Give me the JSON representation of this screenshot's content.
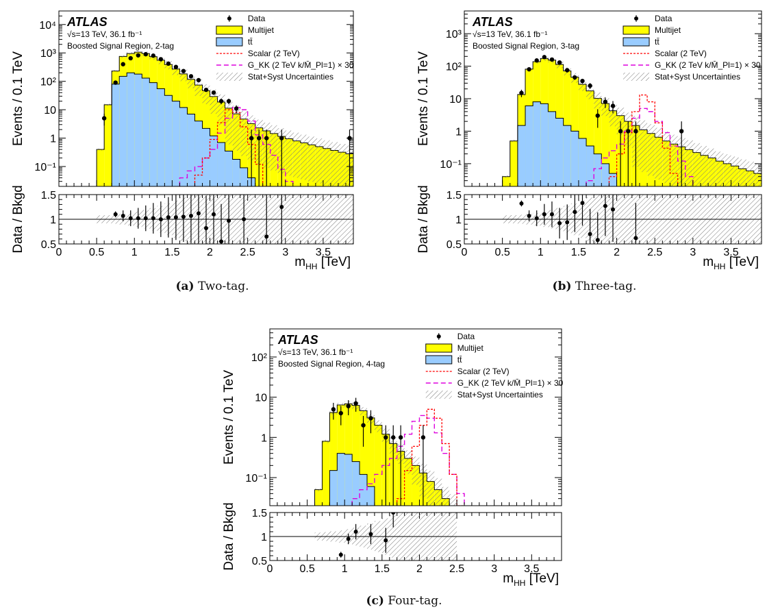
{
  "figure": {
    "captions": [
      {
        "label": "(a)",
        "text": "Two-tag."
      },
      {
        "label": "(b)",
        "text": "Three-tag."
      },
      {
        "label": "(c)",
        "text": "Four-tag."
      }
    ]
  },
  "common": {
    "atlas": "ATLAS",
    "lumi": "√s=13 TeV, 36.1 fb⁻¹",
    "ylabel_top": "Events / 0.1 TeV",
    "ylabel_ratio": "Data / Bkgd",
    "xlabel": "m",
    "xlabel_sub": "HH",
    "xlabel_unit": " [TeV]",
    "legend": [
      {
        "key": "data",
        "label": "Data"
      },
      {
        "key": "multijet",
        "label": "Multijet"
      },
      {
        "key": "ttbar",
        "label": "tt̄"
      },
      {
        "key": "scalar",
        "label": "Scalar (2 TeV)"
      },
      {
        "key": "gkk",
        "label": "G_KK (2 TeV k/M̄_Pl=1) × 30"
      },
      {
        "key": "unc",
        "label": "Stat+Syst Uncertainties"
      }
    ],
    "colors": {
      "multijet": "#ffff00",
      "ttbar": "#99ccff",
      "scalar": "#ff0000",
      "gkk": "#dd00dd",
      "data": "#000000"
    }
  },
  "chart_data": [
    {
      "type": "bar",
      "region": "Boosted Signal Region, 2-tag",
      "xlim": [
        0,
        3.9
      ],
      "ylim": [
        0.02,
        30000
      ],
      "ylog": true,
      "ratio_ylim": [
        0.5,
        1.5
      ],
      "xticks": [
        0,
        0.5,
        1,
        1.5,
        2,
        2.5,
        3,
        3.5
      ],
      "yticks": [
        {
          "v": 0.1,
          "t": "10⁻¹"
        },
        {
          "v": 1,
          "t": "1"
        },
        {
          "v": 10,
          "t": "10"
        },
        {
          "v": 100,
          "t": "10²"
        },
        {
          "v": 1000,
          "t": "10³"
        },
        {
          "v": 10000,
          "t": "10⁴"
        }
      ],
      "bins_start": 0.5,
      "bin_width": 0.1,
      "series": [
        {
          "name": "Multijet",
          "values": [
            0.4,
            15,
            150,
            600,
            750,
            880,
            820,
            650,
            500,
            360,
            250,
            170,
            110,
            70,
            45,
            28,
            18,
            11,
            7,
            4.6,
            3.2,
            2.3,
            1.8,
            1.45,
            1.15,
            0.95,
            0.8,
            0.68,
            0.58,
            0.5,
            0.43,
            0.37,
            0.32,
            0.28,
            0.24
          ]
        },
        {
          "name": "tt̄",
          "values": [
            0,
            0,
            80,
            150,
            200,
            180,
            130,
            90,
            55,
            32,
            20,
            12,
            7,
            4,
            2.2,
            1.2,
            0.7,
            0.35,
            0.18,
            0.09,
            0.04,
            0,
            0,
            0,
            0,
            0,
            0,
            0,
            0,
            0,
            0,
            0,
            0,
            0,
            0
          ]
        },
        {
          "name": "Scalar (2 TeV)",
          "values": [
            0,
            0,
            0,
            0,
            0,
            0,
            0,
            0,
            0,
            0,
            0,
            0,
            0,
            0.05,
            0.2,
            0.9,
            3.5,
            10,
            8,
            2.5,
            0.6,
            0.12,
            0.02,
            0,
            0,
            0,
            0,
            0,
            0,
            0,
            0,
            0,
            0,
            0,
            0
          ]
        },
        {
          "name": "G_KK",
          "values": [
            0,
            0,
            0,
            0,
            0,
            0,
            0,
            0,
            0,
            0,
            0,
            0.04,
            0.07,
            0.1,
            0.2,
            0.4,
            1.5,
            5,
            12,
            10,
            4,
            1.3,
            0.6,
            0.25,
            0.08,
            0.03,
            0,
            0,
            0,
            0,
            0,
            0,
            0,
            0,
            0
          ]
        }
      ],
      "data": {
        "x": [
          0.6,
          0.75,
          0.85,
          0.95,
          1.05,
          1.15,
          1.25,
          1.35,
          1.45,
          1.55,
          1.65,
          1.75,
          1.85,
          1.95,
          2.05,
          2.15,
          2.25,
          2.35,
          2.55,
          2.65,
          2.75,
          2.95,
          3.85
        ],
        "y": [
          5,
          90,
          400,
          650,
          820,
          900,
          800,
          600,
          420,
          320,
          230,
          150,
          110,
          50,
          40,
          20,
          20,
          11,
          1,
          1,
          1,
          1,
          1
        ]
      },
      "ratio": {
        "x": [
          0.75,
          0.85,
          0.95,
          1.05,
          1.15,
          1.25,
          1.35,
          1.45,
          1.55,
          1.65,
          1.75,
          1.85,
          1.95,
          2.05,
          2.15,
          2.25,
          2.45,
          2.75,
          2.95
        ],
        "y": [
          1.1,
          1.07,
          1.02,
          1.02,
          1.02,
          1.02,
          1.0,
          1.04,
          1.04,
          1.05,
          1.07,
          1.12,
          0.82,
          1.1,
          0.55,
          0.97,
          1.0,
          0.65,
          1.25
        ]
      }
    },
    {
      "type": "bar",
      "region": "Boosted Signal Region, 3-tag",
      "xlim": [
        0,
        3.9
      ],
      "ylim": [
        0.02,
        5000
      ],
      "ylog": true,
      "ratio_ylim": [
        0.5,
        1.5
      ],
      "xticks": [
        0,
        0.5,
        1,
        1.5,
        2,
        2.5,
        3,
        3.5
      ],
      "yticks": [
        {
          "v": 0.1,
          "t": "10⁻¹"
        },
        {
          "v": 1,
          "t": "1"
        },
        {
          "v": 10,
          "t": "10"
        },
        {
          "v": 100,
          "t": "10²"
        },
        {
          "v": 1000,
          "t": "10³"
        }
      ],
      "bins_start": 0.5,
      "bin_width": 0.1,
      "series": [
        {
          "name": "Multijet",
          "values": [
            0.04,
            0.5,
            12,
            75,
            130,
            165,
            150,
            110,
            70,
            45,
            27,
            17,
            10,
            7,
            4.2,
            3,
            2,
            1.5,
            1.1,
            0.85,
            0.65,
            0.5,
            0.4,
            0.33,
            0.27,
            0.22,
            0.18,
            0.15,
            0.12,
            0.1,
            0.085,
            0.07,
            0.06,
            0.05,
            0.042
          ]
        },
        {
          "name": "tt̄",
          "values": [
            0,
            0,
            1.5,
            6,
            8,
            7,
            4,
            2.5,
            1.5,
            1,
            0.6,
            0.35,
            0.2,
            0.1,
            0.05,
            0,
            0,
            0,
            0,
            0,
            0,
            0,
            0,
            0,
            0,
            0,
            0,
            0,
            0,
            0,
            0,
            0,
            0,
            0,
            0
          ]
        },
        {
          "name": "Scalar (2 TeV)",
          "values": [
            0,
            0,
            0,
            0,
            0,
            0,
            0,
            0,
            0,
            0,
            0,
            0,
            0,
            0,
            0.04,
            0.2,
            0.9,
            4,
            13,
            8,
            1.8,
            0.3,
            0.05,
            0,
            0,
            0,
            0,
            0,
            0,
            0,
            0,
            0,
            0,
            0,
            0
          ]
        },
        {
          "name": "G_KK",
          "values": [
            0,
            0,
            0,
            0,
            0,
            0,
            0,
            0,
            0,
            0,
            0,
            0.03,
            0.07,
            0.15,
            0.25,
            0.4,
            1,
            2.5,
            5,
            4,
            2,
            0.9,
            0.35,
            0.12,
            0.04,
            0,
            0,
            0,
            0,
            0,
            0,
            0,
            0,
            0,
            0
          ]
        }
      ],
      "data": {
        "x": [
          0.75,
          0.85,
          0.95,
          1.05,
          1.15,
          1.25,
          1.35,
          1.45,
          1.55,
          1.65,
          1.75,
          1.85,
          1.95,
          2.05,
          2.15,
          2.25,
          2.85
        ],
        "y": [
          15,
          80,
          150,
          190,
          160,
          130,
          75,
          45,
          35,
          25,
          3,
          8,
          6,
          1,
          1,
          1,
          1
        ]
      },
      "ratio": {
        "x": [
          0.75,
          0.85,
          0.95,
          1.05,
          1.15,
          1.25,
          1.35,
          1.45,
          1.55,
          1.65,
          1.75,
          1.85,
          1.95,
          2.25
        ],
        "y": [
          1.32,
          1.07,
          1.02,
          1.1,
          1.1,
          0.92,
          0.94,
          1.15,
          1.33,
          0.7,
          0.58,
          1.27,
          1.2,
          0.62
        ]
      }
    },
    {
      "type": "bar",
      "region": "Boosted Signal Region, 4-tag",
      "xlim": [
        0,
        3.9
      ],
      "ylim": [
        0.02,
        500
      ],
      "ylog": true,
      "ratio_ylim": [
        0.5,
        1.5
      ],
      "xticks": [
        0,
        0.5,
        1,
        1.5,
        2,
        2.5,
        3,
        3.5
      ],
      "yticks": [
        {
          "v": 0.1,
          "t": "10⁻¹"
        },
        {
          "v": 1,
          "t": "1"
        },
        {
          "v": 10,
          "t": "10"
        },
        {
          "v": 100,
          "t": "10²"
        }
      ],
      "bins_start": 0.5,
      "bin_width": 0.1,
      "series": [
        {
          "name": "Multijet",
          "values": [
            0,
            0.05,
            0.8,
            4,
            6,
            6.5,
            6,
            4.5,
            3,
            2,
            1.2,
            0.7,
            0.45,
            0.3,
            0.2,
            0.13,
            0.08,
            0.05,
            0.03,
            0.02,
            0,
            0,
            0,
            0,
            0,
            0,
            0,
            0,
            0,
            0,
            0,
            0,
            0,
            0,
            0
          ]
        },
        {
          "name": "tt̄",
          "values": [
            0,
            0,
            0,
            0.15,
            0.4,
            0.38,
            0.25,
            0.12,
            0.06,
            0,
            0,
            0,
            0,
            0,
            0,
            0,
            0,
            0,
            0,
            0,
            0,
            0,
            0,
            0,
            0,
            0,
            0,
            0,
            0,
            0,
            0,
            0,
            0,
            0,
            0
          ]
        },
        {
          "name": "Scalar (2 TeV)",
          "values": [
            0,
            0,
            0,
            0,
            0,
            0,
            0,
            0,
            0,
            0,
            0,
            0,
            0.03,
            0.15,
            0.6,
            2,
            5,
            3,
            0.7,
            0.12,
            0.02,
            0,
            0,
            0,
            0,
            0,
            0,
            0,
            0,
            0,
            0,
            0,
            0,
            0,
            0
          ]
        },
        {
          "name": "G_KK",
          "values": [
            0,
            0,
            0,
            0,
            0,
            0,
            0.03,
            0.05,
            0.07,
            0.12,
            0.2,
            0.3,
            0.6,
            1.2,
            2.5,
            3.5,
            3,
            1.3,
            0.4,
            0.12,
            0.04,
            0,
            0,
            0,
            0,
            0,
            0,
            0,
            0,
            0,
            0,
            0,
            0,
            0,
            0
          ]
        }
      ],
      "data": {
        "x": [
          0.85,
          0.95,
          1.05,
          1.15,
          1.25,
          1.35,
          1.55,
          1.65,
          1.75,
          2.05
        ],
        "y": [
          5,
          4,
          6,
          7,
          2,
          3,
          1,
          1,
          1,
          1
        ]
      },
      "ratio": {
        "x": [
          0.95,
          1.05,
          1.15,
          1.35,
          1.55,
          1.65
        ],
        "y": [
          0.62,
          0.95,
          1.1,
          1.05,
          0.92,
          1.5
        ]
      }
    }
  ]
}
